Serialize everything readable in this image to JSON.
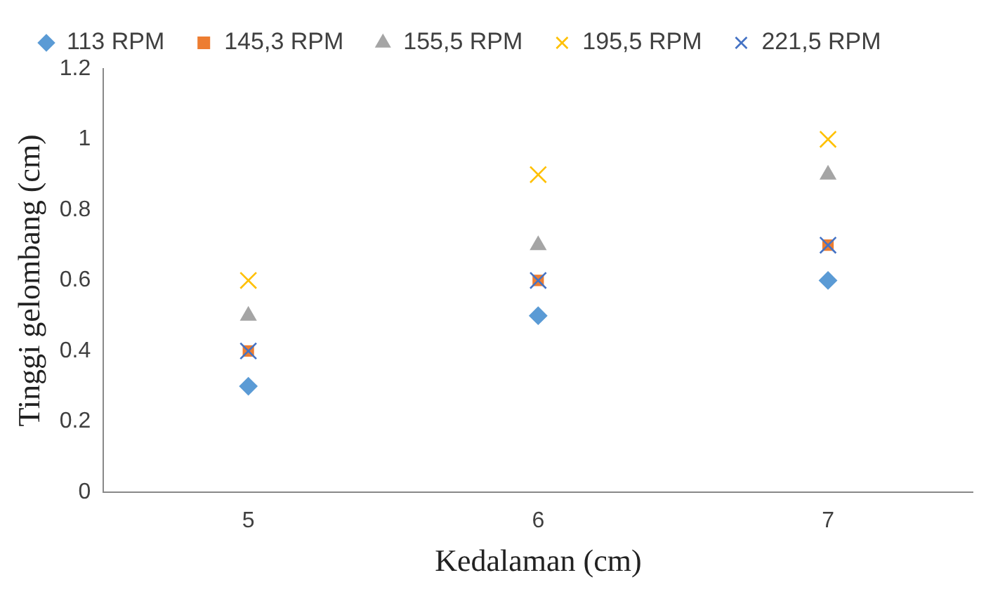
{
  "chart_data": {
    "type": "scatter",
    "xlabel": "Kedalaman (cm)",
    "ylabel": "Tinggi gelombang (cm)",
    "categories": [
      "5",
      "6",
      "7"
    ],
    "ylim": [
      0,
      1.2
    ],
    "yticks": [
      0,
      0.2,
      0.4,
      0.6,
      0.8,
      1,
      1.2
    ],
    "grid": false,
    "legend": "top",
    "series": [
      {
        "name": "113 RPM",
        "color": "#5b9bd5",
        "marker": "diamond",
        "values": [
          0.3,
          0.5,
          0.6
        ]
      },
      {
        "name": "145,3 RPM",
        "color": "#ed7d31",
        "marker": "square",
        "values": [
          0.4,
          0.6,
          0.7
        ]
      },
      {
        "name": "155,5 RPM",
        "color": "#a5a5a5",
        "marker": "triangle",
        "values": [
          0.5,
          0.7,
          0.9
        ]
      },
      {
        "name": "195,5 RPM",
        "color": "#ffc000",
        "marker": "cross",
        "values": [
          0.6,
          0.9,
          1.0
        ]
      },
      {
        "name": "221,5 RPM",
        "color": "#4472c4",
        "marker": "cross",
        "values": [
          0.4,
          0.6,
          0.7
        ]
      }
    ]
  }
}
